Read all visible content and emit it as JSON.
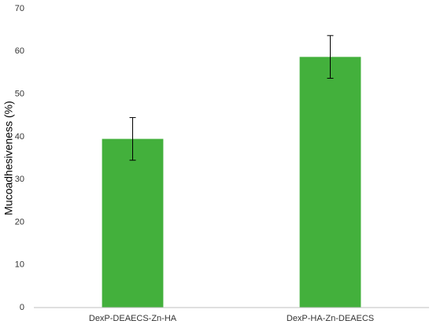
{
  "chart_data": {
    "type": "bar",
    "y_label": "Mucoadhesiveness (%)",
    "categories": [
      "DexP-DEAECS-Zn-HA",
      "DexP-HA-Zn-DEAECS"
    ],
    "values": [
      39.5,
      58.7
    ],
    "errors": [
      5,
      5
    ],
    "color": "#43b03c",
    "ylim": [
      0,
      70
    ],
    "yticks": [
      0,
      10,
      20,
      30,
      40,
      50,
      60,
      70
    ],
    "grid": false
  }
}
